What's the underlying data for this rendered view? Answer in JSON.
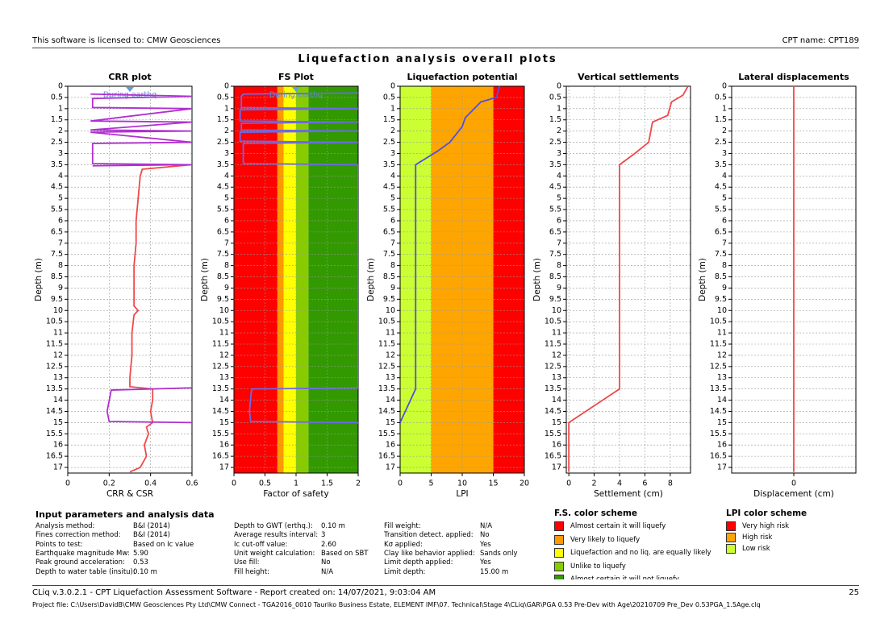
{
  "header": {
    "license": "This software is licensed to: CMW Geosciences",
    "cpt": "CPT name: CPT189",
    "title": "Liquefaction analysis overall plots"
  },
  "chart_data": [
    {
      "type": "profile",
      "title": "CRR plot",
      "xlabel": "CRR & CSR",
      "ylabel": "Depth (m)",
      "annotation": "During earthq",
      "xlim": [
        0,
        0.6
      ],
      "xticks": [
        0,
        0.2,
        0.4,
        0.6
      ],
      "ylim": [
        0,
        17.25
      ],
      "yticks": [
        0,
        0.5,
        1,
        1.5,
        2,
        2.5,
        3,
        3.5,
        4,
        4.5,
        5,
        5.5,
        6,
        6.5,
        7,
        7.5,
        8,
        8.5,
        9,
        9.5,
        10,
        10.5,
        11,
        11.5,
        12,
        12.5,
        13,
        13.5,
        14,
        14.5,
        15,
        15.5,
        16,
        16.5,
        17
      ],
      "grid": true,
      "series": [
        {
          "color": "#f04848",
          "depths": [
            0.3,
            0.5,
            1,
            1.5,
            2,
            2.5,
            3,
            3.5,
            3.7,
            4,
            5,
            6,
            7,
            8,
            9,
            9.8,
            10,
            10.2,
            11,
            12,
            13,
            13.4,
            13.5,
            14,
            14.5,
            15,
            15.2,
            15.5,
            16,
            16.5,
            17,
            17.2
          ],
          "values": [
            0.6,
            0.6,
            0.6,
            0.6,
            0.6,
            0.6,
            0.6,
            0.6,
            0.36,
            0.35,
            0.34,
            0.33,
            0.33,
            0.32,
            0.32,
            0.32,
            0.34,
            0.32,
            0.31,
            0.31,
            0.3,
            0.3,
            0.41,
            0.41,
            0.4,
            0.41,
            0.38,
            0.39,
            0.37,
            0.38,
            0.35,
            0.3
          ]
        },
        {
          "color": "#b030d0",
          "depths": [
            0.35,
            0.45,
            0.55,
            0.95,
            1.0,
            1.55,
            1.6,
            1.95,
            2.0,
            2.05,
            2.5,
            2.55,
            3.45,
            3.5,
            3.55,
            4,
            13.45,
            13.55,
            14.5,
            14.95,
            15.0
          ],
          "values": [
            0.11,
            0.6,
            0.12,
            0.12,
            0.6,
            0.11,
            0.6,
            0.11,
            0.6,
            0.11,
            0.6,
            0.12,
            0.12,
            0.6,
            0.12,
            null,
            0.6,
            0.21,
            0.19,
            0.2,
            0.6
          ]
        }
      ]
    },
    {
      "type": "profile",
      "title": "FS Plot",
      "xlabel": "Factor of safety",
      "ylabel": "Depth (m)",
      "annotation": "During earthq",
      "xlim": [
        0,
        2
      ],
      "xticks": [
        0,
        0.5,
        1,
        1.5,
        2
      ],
      "ylim": [
        0,
        17.25
      ],
      "yticks": [
        0,
        0.5,
        1,
        1.5,
        2,
        2.5,
        3,
        3.5,
        4,
        4.5,
        5,
        5.5,
        6,
        6.5,
        7,
        7.5,
        8,
        8.5,
        9,
        9.5,
        10,
        10.5,
        11,
        11.5,
        12,
        12.5,
        13,
        13.5,
        14,
        14.5,
        15,
        15.5,
        16,
        16.5,
        17
      ],
      "grid": true,
      "bands": [
        {
          "from": 0,
          "to": 0.7,
          "color": "#ff0000"
        },
        {
          "from": 0.7,
          "to": 0.8,
          "color": "#ff9900"
        },
        {
          "from": 0.8,
          "to": 1.0,
          "color": "#ffff00"
        },
        {
          "from": 1.0,
          "to": 1.2,
          "color": "#88cc00"
        },
        {
          "from": 1.2,
          "to": 2,
          "color": "#339900"
        }
      ],
      "series": [
        {
          "color": "#6a6ae8",
          "depths": [
            0.3,
            0.35,
            0.45,
            0.95,
            1.0,
            1.05,
            1.55,
            1.6,
            1.65,
            1.95,
            2.0,
            2.05,
            2.45,
            2.5,
            2.55,
            3.45,
            3.5,
            3.55,
            13.45,
            13.5,
            13.6,
            14.5,
            14.95,
            15.0,
            15.05
          ],
          "values": [
            2,
            0.15,
            0.12,
            0.12,
            2,
            0.1,
            0.1,
            2,
            0.12,
            0.12,
            2,
            0.1,
            0.1,
            2,
            0.15,
            0.15,
            2,
            2,
            2,
            0.3,
            0.28,
            0.25,
            0.27,
            2,
            2
          ]
        }
      ]
    },
    {
      "type": "profile",
      "title": "Liquefaction potential",
      "xlabel": "LPI",
      "ylabel": "Depth (m)",
      "xlim": [
        0,
        20
      ],
      "xticks": [
        0,
        5,
        10,
        15,
        20
      ],
      "ylim": [
        0,
        17.25
      ],
      "yticks": [
        0,
        0.5,
        1,
        1.5,
        2,
        2.5,
        3,
        3.5,
        4,
        4.5,
        5,
        5.5,
        6,
        6.5,
        7,
        7.5,
        8,
        8.5,
        9,
        9.5,
        10,
        10.5,
        11,
        11.5,
        12,
        12.5,
        13,
        13.5,
        14,
        14.5,
        15,
        15.5,
        16,
        16.5,
        17
      ],
      "grid": true,
      "bands": [
        {
          "from": 0,
          "to": 5,
          "color": "#ccff33"
        },
        {
          "from": 5,
          "to": 15,
          "color": "#ffa500"
        },
        {
          "from": 15,
          "to": 20,
          "color": "#ff0000"
        }
      ],
      "series": [
        {
          "color": "#5050e0",
          "depths": [
            0,
            0.5,
            0.7,
            1.4,
            1.8,
            2.5,
            2.9,
            3.5,
            13.5,
            15
          ],
          "values": [
            16,
            15.5,
            13,
            10.5,
            10,
            8,
            6,
            2.5,
            2.5,
            0
          ]
        }
      ]
    },
    {
      "type": "profile",
      "title": "Vertical settlements",
      "xlabel": "Settlement (cm)",
      "ylabel": "Depth (m)",
      "xlim": [
        -0.2,
        9.6
      ],
      "xticks": [
        0,
        2,
        4,
        6,
        8
      ],
      "ylim": [
        0,
        17.25
      ],
      "yticks": [
        0,
        0.5,
        1,
        1.5,
        2,
        2.5,
        3,
        3.5,
        4,
        4.5,
        5,
        5.5,
        6,
        6.5,
        7,
        7.5,
        8,
        8.5,
        9,
        9.5,
        10,
        10.5,
        11,
        11.5,
        12,
        12.5,
        13,
        13.5,
        14,
        14.5,
        15,
        15.5,
        16,
        16.5,
        17
      ],
      "grid": true,
      "series": [
        {
          "color": "#f04848",
          "depths": [
            0,
            0.4,
            0.7,
            1.3,
            1.6,
            2.5,
            3,
            3.5,
            13.5,
            15,
            17.2
          ],
          "values": [
            9.4,
            9,
            8.1,
            7.8,
            6.6,
            6.3,
            5.2,
            4,
            4,
            0,
            0
          ]
        }
      ]
    },
    {
      "type": "profile",
      "title": "Lateral displacements",
      "xlabel": "Displacement (cm)",
      "ylabel": "Depth (m)",
      "xlim": [
        -1,
        1
      ],
      "xticks": [
        0
      ],
      "ylim": [
        0,
        17.25
      ],
      "yticks": [
        0,
        0.5,
        1,
        1.5,
        2,
        2.5,
        3,
        3.5,
        4,
        4.5,
        5,
        5.5,
        6,
        6.5,
        7,
        7.5,
        8,
        8.5,
        9,
        9.5,
        10,
        10.5,
        11,
        11.5,
        12,
        12.5,
        13,
        13.5,
        14,
        14.5,
        15,
        15.5,
        16,
        16.5,
        17
      ],
      "grid": true,
      "series": [
        {
          "color": "#f04848",
          "depths": [
            0,
            17.2
          ],
          "values": [
            0,
            0
          ]
        }
      ]
    }
  ],
  "parameters": {
    "title": "Input parameters and analysis data",
    "columns": [
      [
        [
          "Analysis method:",
          "B&I (2014)"
        ],
        [
          "Fines correction method:",
          "B&I (2014)"
        ],
        [
          "Points to test:",
          "Based on Ic value"
        ],
        [
          "Earthquake magnitude Mw:",
          "5.90"
        ],
        [
          "Peak ground acceleration:",
          "0.53"
        ],
        [
          "Depth to water table (insitu):",
          "0.10 m"
        ]
      ],
      [
        [
          "Depth to GWT (erthq.):",
          "0.10 m"
        ],
        [
          "Average results interval:",
          "3"
        ],
        [
          "Ic cut-off value:",
          "2.60"
        ],
        [
          "Unit weight calculation:",
          "Based on SBT"
        ],
        [
          "Use fill:",
          "No"
        ],
        [
          "Fill height:",
          "N/A"
        ]
      ],
      [
        [
          "Fill weight:",
          "N/A"
        ],
        [
          "Transition detect. applied:",
          "No"
        ],
        [
          "Kσ applied:",
          "Yes"
        ],
        [
          "Clay like behavior applied:",
          "Sands only"
        ],
        [
          "Limit depth applied:",
          "Yes"
        ],
        [
          "Limit depth:",
          "15.00 m"
        ]
      ]
    ]
  },
  "fs_scheme": {
    "title": "F.S. color scheme",
    "items": [
      {
        "color": "#ff0000",
        "label": "Almost certain it will liquefy"
      },
      {
        "color": "#ff9900",
        "label": "Very likely to liquefy"
      },
      {
        "color": "#ffff00",
        "label": "Liquefaction and no liq. are equally likely"
      },
      {
        "color": "#88cc00",
        "label": "Unlike to liquefy"
      },
      {
        "color": "#339900",
        "label": "Almost certain it will not liquefy"
      }
    ]
  },
  "lpi_scheme": {
    "title": "LPI color scheme",
    "items": [
      {
        "color": "#ff0000",
        "label": "Very high risk"
      },
      {
        "color": "#ffa500",
        "label": "High risk"
      },
      {
        "color": "#ccff33",
        "label": "Low risk"
      }
    ]
  },
  "footer": {
    "software": "CLiq v.3.0.2.1 - CPT Liquefaction Assessment Software - Report created on: 14/07/2021, 9:03:04 AM",
    "page": "25",
    "project": "Project file: C:\\Users\\DavidB\\CMW Geosciences Pty Ltd\\CMW Connect - TGA2016_0010 Tauriko Business Estate, ELEMENT IMF\\07. Technical\\Stage 4\\CLiq\\GAR\\PGA 0.53 Pre-Dev with Age\\20210709 Pre_Dev 0.53PGA_1.5Age.clq"
  }
}
